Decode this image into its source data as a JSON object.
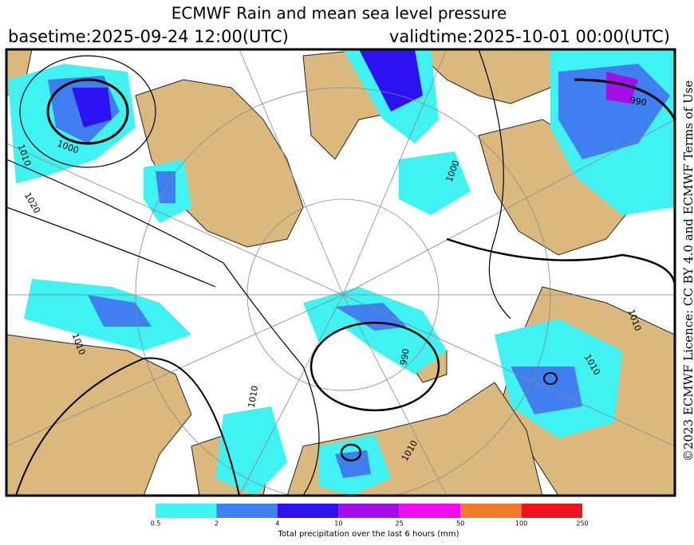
{
  "header": {
    "title": "ECMWF Rain and mean sea level pressure",
    "basetime": "basetime:2025-09-24 12:00(UTC)",
    "validtime": "validtime:2025-10-01 00:00(UTC)"
  },
  "license": "©2023 ECMWF  Licence: CC BY 4.0 and ECMWF  Terms of Use",
  "colorbar": {
    "ticks": [
      0.5,
      2,
      4,
      10,
      25,
      50,
      100,
      250
    ],
    "colors": [
      "#40f2f2",
      "#3f7ff0",
      "#2c12f0",
      "#a40ee8",
      "#f00ef0",
      "#f07c2c",
      "#f0121e"
    ],
    "caption": "Total precipitation over the last 6 hours (mm)"
  },
  "isobar_labels": [
    "1010",
    "1000",
    "1020",
    "1000",
    "990",
    "1010",
    "1010",
    "1010",
    "990",
    "1010",
    "1010"
  ]
}
